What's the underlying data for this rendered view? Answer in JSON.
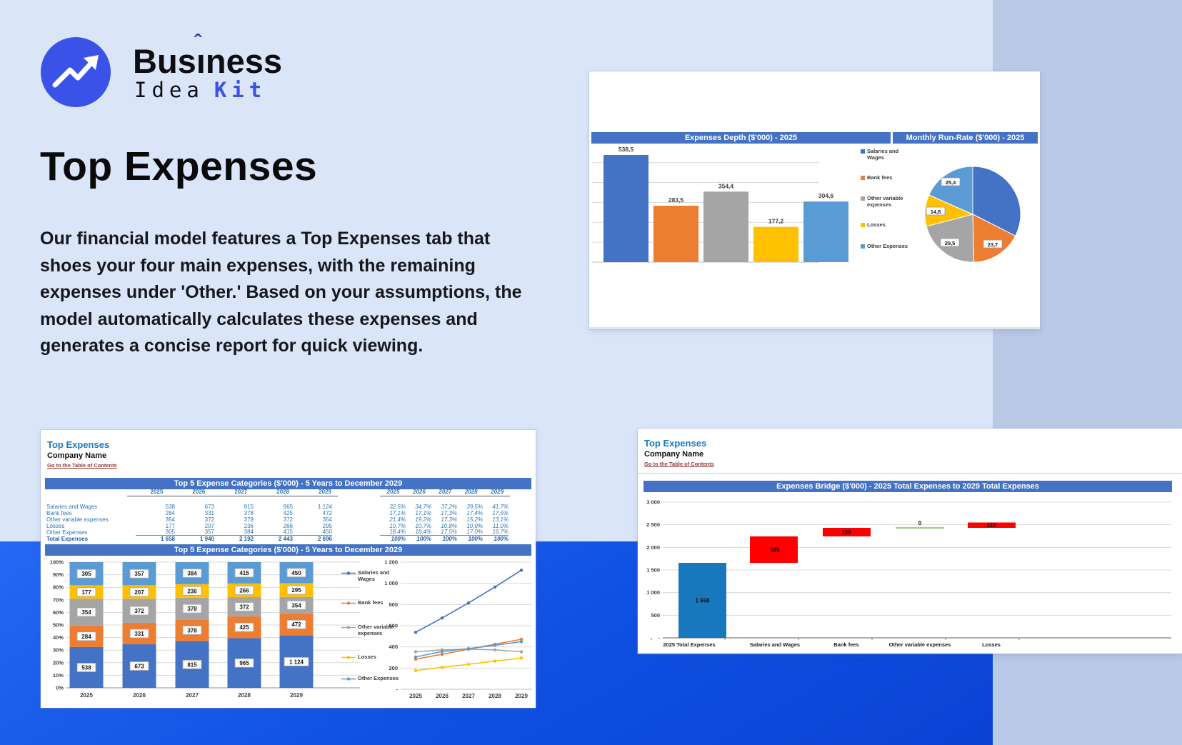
{
  "logo": {
    "word1_pre": "Bus",
    "word1_i": "ı",
    "caret": "ˆ",
    "word1_post": "ness",
    "word2": "Idea",
    "word3": "Kit",
    "circle_color": "#3b52e8"
  },
  "hero": {
    "title": "Top Expenses",
    "description": "Our financial model features a Top Expenses tab that shoes your four main expenses, with the remaining expenses under 'Other.' Based on your assumptions, the model automatically calculates these expenses and generates a concise report for quick viewing."
  },
  "depth_card": {
    "banner_left": "Expenses Depth ($'000) - 2025",
    "banner_right": "Monthly Run-Rate ($'000) - 2025",
    "legend": [
      {
        "label": "Salaries and Wages",
        "color": "#4472C4"
      },
      {
        "label": "Bank fees",
        "color": "#ED7D31"
      },
      {
        "label": "Other variable expenses",
        "color": "#A5A5A5"
      },
      {
        "label": "Losses",
        "color": "#FFC000"
      },
      {
        "label": "Other Expenses",
        "color": "#5B9BD5"
      }
    ]
  },
  "sheet1": {
    "title": "Top Expenses",
    "company": "Company Name",
    "link": "Go to the Table of Contents",
    "banner_table": "Top 5 Expense Categories ($'000) - 5 Years to December 2029",
    "banner_chart": "Top 5 Expense Categories ($'000) - 5 Years to December 2029",
    "years": [
      "2025",
      "2026",
      "2027",
      "2028",
      "2029"
    ],
    "rows": [
      {
        "label": "Salaries and Wages",
        "values": [
          "538",
          "673",
          "815",
          "965",
          "1 124"
        ],
        "pcts": [
          "32,5%",
          "34,7%",
          "37,2%",
          "39,5%",
          "41,7%"
        ]
      },
      {
        "label": "Bank fees",
        "values": [
          "284",
          "331",
          "378",
          "425",
          "472"
        ],
        "pcts": [
          "17,1%",
          "17,1%",
          "17,3%",
          "17,4%",
          "17,5%"
        ]
      },
      {
        "label": "Other variable expenses",
        "values": [
          "354",
          "372",
          "378",
          "372",
          "354"
        ],
        "pcts": [
          "21,4%",
          "19,2%",
          "17,3%",
          "15,2%",
          "13,1%"
        ]
      },
      {
        "label": "Losses",
        "values": [
          "177",
          "207",
          "236",
          "266",
          "295"
        ],
        "pcts": [
          "10,7%",
          "10,7%",
          "10,8%",
          "10,9%",
          "11,0%"
        ]
      },
      {
        "label": "Other Expenses",
        "values": [
          "305",
          "357",
          "384",
          "415",
          "450"
        ],
        "pcts": [
          "18,4%",
          "18,4%",
          "17,5%",
          "17,0%",
          "16,7%"
        ]
      }
    ],
    "total": {
      "label": "Total Expenses",
      "values": [
        "1 658",
        "1 940",
        "2 192",
        "2 443",
        "2 696"
      ],
      "pcts": [
        "100%",
        "100%",
        "100%",
        "100%",
        "100%"
      ]
    },
    "legend": [
      {
        "label": "Salaries and Wages",
        "color": "#4472C4"
      },
      {
        "label": "Bank fees",
        "color": "#ED7D31"
      },
      {
        "label": "Other variable expenses",
        "color": "#A5A5A5"
      },
      {
        "label": "Losses",
        "color": "#FFC000"
      },
      {
        "label": "Other Expenses",
        "color": "#5B9BD5"
      }
    ]
  },
  "sheet2": {
    "title": "Top Expenses",
    "company": "Company Name",
    "link": "Go to the Table of Contents",
    "banner": "Expenses Bridge ($'000) - 2025 Total Expenses to 2029 Total Expenses"
  },
  "chart_data": [
    {
      "id": "expenses_depth",
      "type": "bar",
      "title": "Expenses Depth ($'000) - 2025",
      "categories": [
        "Salaries and Wages",
        "Bank fees",
        "Other variable expenses",
        "Losses",
        "Other Expenses"
      ],
      "values": [
        538.5,
        283.5,
        354.4,
        177.2,
        304.6
      ],
      "labels": [
        "538,5",
        "283,5",
        "354,4",
        "177,2",
        "304,6"
      ],
      "colors": [
        "#4472C4",
        "#ED7D31",
        "#A5A5A5",
        "#FFC000",
        "#5B9BD5"
      ],
      "ylim": [
        0,
        590
      ],
      "grid_step": 100,
      "legend_position": "right"
    },
    {
      "id": "monthly_run_rate",
      "type": "pie",
      "title": "Monthly Run-Rate ($'000) - 2025",
      "categories": [
        "Salaries and Wages",
        "Bank fees",
        "Other variable expenses",
        "Losses",
        "Other Expenses"
      ],
      "values": [
        44.9,
        23.7,
        29.5,
        14.8,
        25.4
      ],
      "visible_labels": [
        "",
        "23,7",
        "29,5",
        "14,8",
        "25,4"
      ],
      "colors": [
        "#4472C4",
        "#ED7D31",
        "#A5A5A5",
        "#FFC000",
        "#5B9BD5"
      ]
    },
    {
      "id": "top5_stacked",
      "type": "bar",
      "stacked": true,
      "percent": true,
      "title": "Top 5 Expense Categories ($'000) - 5 Years to December 2029",
      "categories": [
        "2025",
        "2026",
        "2027",
        "2028",
        "2029"
      ],
      "series": [
        {
          "name": "Salaries and Wages",
          "values": [
            538,
            673,
            815,
            965,
            1124
          ],
          "labels": [
            "538",
            "673",
            "815",
            "965",
            "1 124"
          ],
          "color": "#4472C4"
        },
        {
          "name": "Bank fees",
          "values": [
            284,
            331,
            378,
            425,
            472
          ],
          "labels": [
            "284",
            "331",
            "378",
            "425",
            "472"
          ],
          "color": "#ED7D31"
        },
        {
          "name": "Other variable expenses",
          "values": [
            354,
            372,
            378,
            372,
            354
          ],
          "labels": [
            "354",
            "372",
            "378",
            "372",
            "354"
          ],
          "color": "#A5A5A5"
        },
        {
          "name": "Losses",
          "values": [
            177,
            207,
            236,
            266,
            295
          ],
          "labels": [
            "177",
            "207",
            "236",
            "266",
            "295"
          ],
          "color": "#FFC000"
        },
        {
          "name": "Other Expenses",
          "values": [
            305,
            357,
            384,
            415,
            450
          ],
          "labels": [
            "305",
            "357",
            "384",
            "415",
            "450"
          ],
          "color": "#5B9BD5"
        }
      ],
      "totals": [
        1658,
        1940,
        2192,
        2443,
        2696
      ],
      "y_ticks": [
        "0%",
        "10%",
        "20%",
        "30%",
        "40%",
        "50%",
        "60%",
        "70%",
        "80%",
        "90%",
        "100%"
      ]
    },
    {
      "id": "top5_lines",
      "type": "line",
      "categories": [
        "2025",
        "2026",
        "2027",
        "2028",
        "2029"
      ],
      "series": [
        {
          "name": "Salaries and Wages",
          "values": [
            538,
            673,
            815,
            965,
            1124
          ],
          "color": "#4472C4"
        },
        {
          "name": "Bank fees",
          "values": [
            284,
            331,
            378,
            425,
            472
          ],
          "color": "#ED7D31"
        },
        {
          "name": "Other variable expenses",
          "values": [
            354,
            372,
            378,
            372,
            354
          ],
          "color": "#A5A5A5"
        },
        {
          "name": "Losses",
          "values": [
            177,
            207,
            236,
            266,
            295
          ],
          "color": "#FFC000"
        },
        {
          "name": "Other Expenses",
          "values": [
            305,
            357,
            384,
            415,
            450
          ],
          "color": "#5B9BD5"
        }
      ],
      "ylim": [
        0,
        1200
      ],
      "y_ticks": [
        "-",
        "200",
        "400",
        "600",
        "800",
        "1 000",
        "1 200"
      ]
    },
    {
      "id": "expenses_bridge",
      "type": "waterfall",
      "title": "Expenses Bridge ($'000) - 2025 Total Expenses to 2029 Total Expenses",
      "categories": [
        "2025 Total Expenses",
        "Salaries and Wages",
        "Bank fees",
        "Other variable expenses",
        "Losses"
      ],
      "bars": [
        {
          "label": "1 658",
          "start": 0,
          "end": 1658,
          "color": "#1878BE",
          "connector": false
        },
        {
          "label": "585",
          "start": 1658,
          "end": 2243,
          "color": "#FF0000",
          "connector": false
        },
        {
          "label": "189",
          "start": 2243,
          "end": 2432,
          "color": "#FF0000",
          "connector": false
        },
        {
          "label": "0",
          "start": 2432,
          "end": 2432,
          "color": "#A9D18E",
          "connector": true
        },
        {
          "label": "118",
          "start": 2432,
          "end": 2550,
          "color": "#FF0000",
          "connector": false
        }
      ],
      "ylim": [
        0,
        3000
      ],
      "y_ticks": [
        "-",
        "500",
        "1 000",
        "1 500",
        "2 000",
        "2 500",
        "3 000"
      ]
    }
  ]
}
